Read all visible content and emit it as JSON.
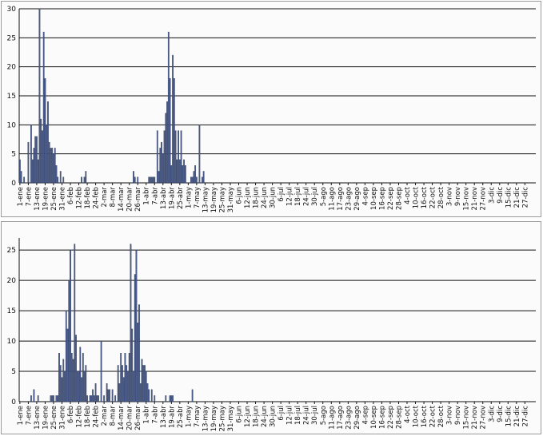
{
  "chart_data": [
    {
      "type": "bar",
      "title": "",
      "xlabel": "",
      "ylabel": "",
      "ylim": [
        0,
        30
      ],
      "yticks": [
        0,
        5,
        10,
        15,
        20,
        25,
        30
      ],
      "grid": true,
      "tick_labels": [
        "1-ene",
        "7-ene",
        "13-ene",
        "19-ene",
        "25-ene",
        "31-ene",
        "6-feb",
        "12-feb",
        "18-feb",
        "24-feb",
        "2-mar",
        "8-mar",
        "14-mar",
        "20-mar",
        "26-mar",
        "1-abr",
        "7-abr",
        "13-abr",
        "19-abr",
        "25-abr",
        "1-may",
        "7-may",
        "13-may",
        "19-may",
        "25-may",
        "31-may",
        "6-jun",
        "12-jun",
        "18-jun",
        "24-jun",
        "30-jun",
        "6-jul",
        "12-jul",
        "18-jul",
        "24-jul",
        "30-jul",
        "5-ago",
        "11-ago",
        "17-ago",
        "23-ago",
        "29-ago",
        "4-sep",
        "10-sep",
        "16-sep",
        "22-sep",
        "28-sep",
        "4-oct",
        "10-oct",
        "16-oct",
        "22-oct",
        "28-oct",
        "3-nov",
        "9-nov",
        "15-nov",
        "21-nov",
        "27-nov",
        "3-dic",
        "9-dic",
        "15-dic",
        "21-dic",
        "27-dic"
      ],
      "bars": [
        [
          0,
          4
        ],
        [
          1,
          2
        ],
        [
          3,
          1
        ],
        [
          6,
          7
        ],
        [
          8,
          10
        ],
        [
          9,
          4
        ],
        [
          10,
          6
        ],
        [
          11,
          8
        ],
        [
          12,
          8
        ],
        [
          13,
          4
        ],
        [
          14,
          30
        ],
        [
          15,
          11
        ],
        [
          16,
          9
        ],
        [
          17,
          26
        ],
        [
          18,
          18
        ],
        [
          19,
          10
        ],
        [
          20,
          14
        ],
        [
          21,
          7
        ],
        [
          22,
          6
        ],
        [
          23,
          6
        ],
        [
          24,
          5
        ],
        [
          25,
          6
        ],
        [
          26,
          3
        ],
        [
          27,
          1
        ],
        [
          29,
          2
        ],
        [
          31,
          1
        ],
        [
          44,
          1
        ],
        [
          46,
          1
        ],
        [
          47,
          2
        ],
        [
          81,
          2
        ],
        [
          82,
          1
        ],
        [
          84,
          1
        ],
        [
          92,
          1
        ],
        [
          93,
          1
        ],
        [
          94,
          1
        ],
        [
          95,
          1
        ],
        [
          96,
          1
        ],
        [
          98,
          9
        ],
        [
          99,
          2
        ],
        [
          100,
          6
        ],
        [
          101,
          7
        ],
        [
          102,
          5
        ],
        [
          103,
          9
        ],
        [
          104,
          12
        ],
        [
          105,
          14
        ],
        [
          106,
          26
        ],
        [
          107,
          18
        ],
        [
          108,
          3
        ],
        [
          109,
          22
        ],
        [
          110,
          18
        ],
        [
          111,
          9
        ],
        [
          112,
          4
        ],
        [
          113,
          9
        ],
        [
          114,
          4
        ],
        [
          115,
          9
        ],
        [
          116,
          3
        ],
        [
          117,
          4
        ],
        [
          118,
          3
        ],
        [
          122,
          1
        ],
        [
          123,
          1
        ],
        [
          124,
          2
        ],
        [
          125,
          3
        ],
        [
          126,
          1
        ],
        [
          128,
          10
        ],
        [
          130,
          1
        ],
        [
          131,
          2
        ]
      ]
    },
    {
      "type": "bar",
      "title": "",
      "xlabel": "",
      "ylabel": "",
      "ylim": [
        0,
        27
      ],
      "yticks": [
        0,
        5,
        10,
        15,
        20,
        25
      ],
      "grid": true,
      "tick_labels": [
        "1-ene",
        "7-ene",
        "13-ene",
        "19-ene",
        "25-ene",
        "31-ene",
        "6-feb",
        "12-feb",
        "18-feb",
        "24-feb",
        "2-mar",
        "8-mar",
        "14-mar",
        "20-mar",
        "26-mar",
        "1-abr",
        "7-abr",
        "13-abr",
        "19-abr",
        "25-abr",
        "1-may",
        "7-may",
        "13-may",
        "19-may",
        "25-may",
        "31-may",
        "6-jun",
        "12-jun",
        "18-jun",
        "24-jun",
        "30-jun",
        "6-jul",
        "12-jul",
        "18-jul",
        "24-jul",
        "30-jul",
        "5-ago",
        "11-ago",
        "17-ago",
        "23-ago",
        "29-ago",
        "4-sep",
        "10-sep",
        "16-sep",
        "22-sep",
        "28-sep",
        "4-oct",
        "10-oct",
        "16-oct",
        "22-oct",
        "28-oct",
        "3-nov",
        "9-nov",
        "15-nov",
        "21-nov",
        "27-nov",
        "3-dic",
        "9-dic",
        "15-dic",
        "21-dic",
        "27-dic"
      ],
      "bars": [
        [
          8,
          1
        ],
        [
          10,
          2
        ],
        [
          13,
          1
        ],
        [
          22,
          1
        ],
        [
          23,
          1
        ],
        [
          24,
          1
        ],
        [
          26,
          1
        ],
        [
          27,
          1
        ],
        [
          28,
          8
        ],
        [
          29,
          6
        ],
        [
          30,
          4
        ],
        [
          31,
          7
        ],
        [
          32,
          5
        ],
        [
          33,
          15
        ],
        [
          34,
          12
        ],
        [
          35,
          20
        ],
        [
          36,
          25
        ],
        [
          37,
          8
        ],
        [
          38,
          7
        ],
        [
          39,
          26
        ],
        [
          40,
          11
        ],
        [
          41,
          5
        ],
        [
          42,
          5
        ],
        [
          43,
          9
        ],
        [
          44,
          4
        ],
        [
          45,
          8
        ],
        [
          46,
          5
        ],
        [
          47,
          6
        ],
        [
          48,
          1
        ],
        [
          50,
          1
        ],
        [
          51,
          1
        ],
        [
          52,
          2
        ],
        [
          53,
          1
        ],
        [
          54,
          3
        ],
        [
          55,
          1
        ],
        [
          56,
          1
        ],
        [
          58,
          10
        ],
        [
          60,
          1
        ],
        [
          62,
          3
        ],
        [
          63,
          2
        ],
        [
          64,
          2
        ],
        [
          66,
          2
        ],
        [
          68,
          1
        ],
        [
          70,
          6
        ],
        [
          71,
          3
        ],
        [
          72,
          8
        ],
        [
          73,
          6
        ],
        [
          74,
          4
        ],
        [
          75,
          8
        ],
        [
          76,
          6
        ],
        [
          77,
          5
        ],
        [
          78,
          8
        ],
        [
          79,
          26
        ],
        [
          80,
          12
        ],
        [
          81,
          5
        ],
        [
          82,
          21
        ],
        [
          83,
          25
        ],
        [
          84,
          13
        ],
        [
          85,
          16
        ],
        [
          86,
          3
        ],
        [
          87,
          7
        ],
        [
          88,
          6
        ],
        [
          89,
          6
        ],
        [
          90,
          5
        ],
        [
          91,
          3
        ],
        [
          92,
          2
        ],
        [
          94,
          2
        ],
        [
          96,
          1
        ],
        [
          104,
          1
        ],
        [
          107,
          1
        ],
        [
          108,
          1
        ],
        [
          109,
          1
        ],
        [
          123,
          2
        ]
      ]
    }
  ]
}
